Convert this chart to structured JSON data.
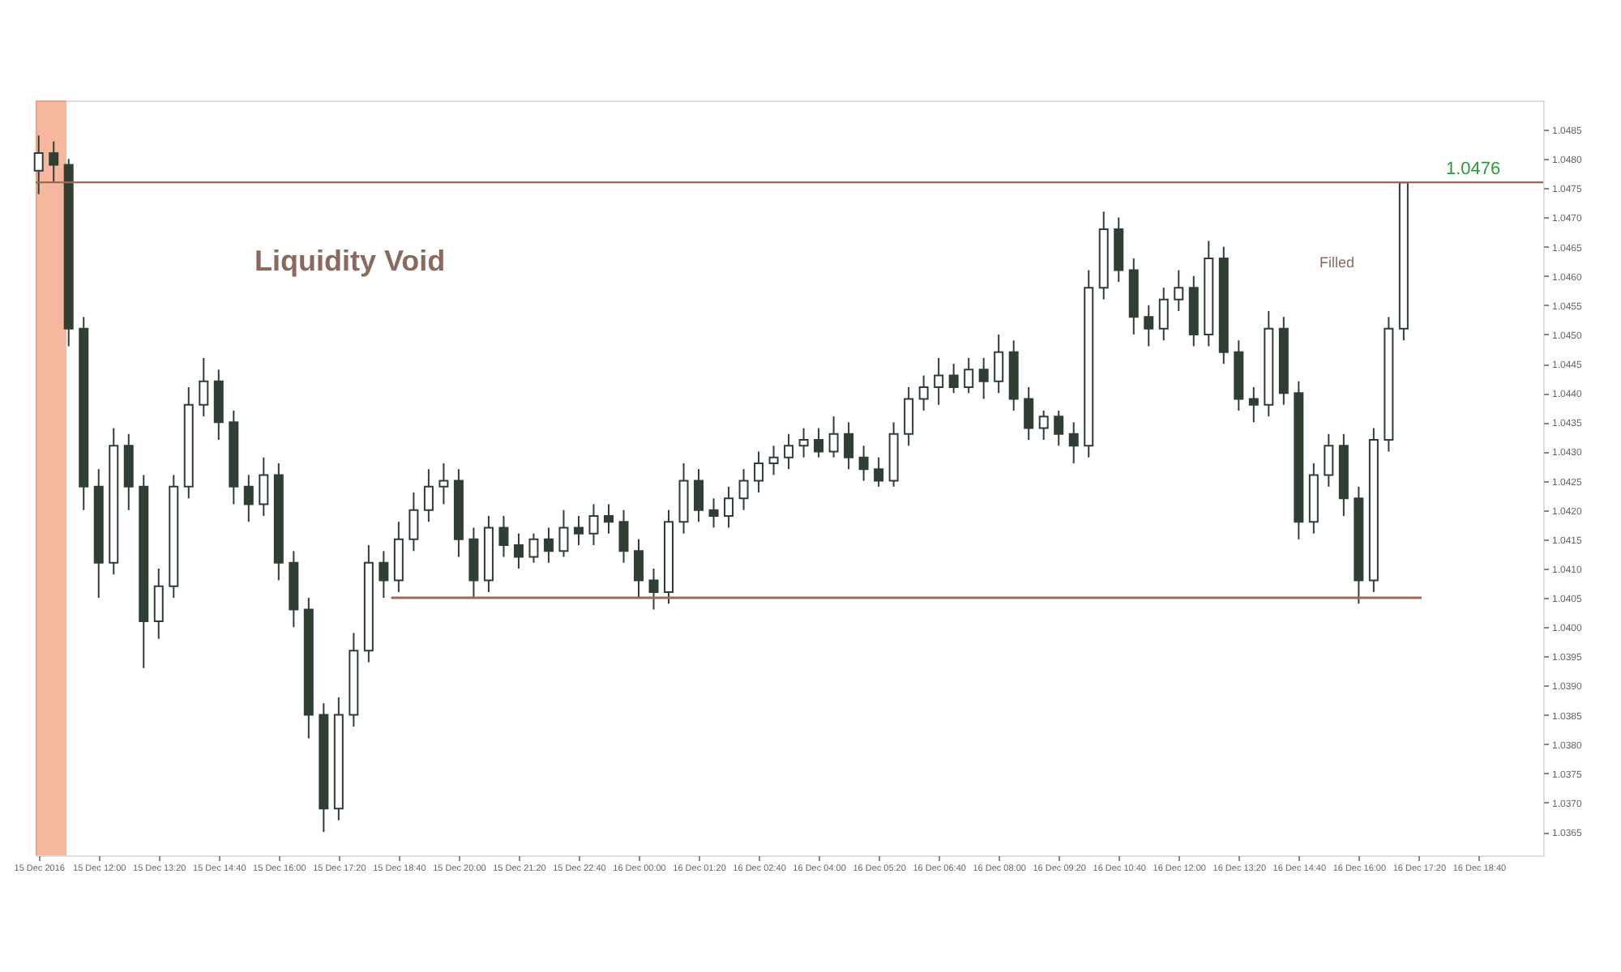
{
  "chart_data": {
    "type": "candlestick",
    "color": "#2f3f34",
    "x": [
      "2016-12-15T10:40",
      "2016-12-15T11:00",
      "2016-12-15T11:20",
      "2016-12-15T11:40",
      "2016-12-15T12:00",
      "2016-12-15T12:20",
      "2016-12-15T12:40",
      "2016-12-15T13:00",
      "2016-12-15T13:20",
      "2016-12-15T13:40",
      "2016-12-15T14:00",
      "2016-12-15T14:20",
      "2016-12-15T14:40",
      "2016-12-15T15:00",
      "2016-12-15T15:20",
      "2016-12-15T15:40",
      "2016-12-15T16:00",
      "2016-12-15T16:20",
      "2016-12-15T16:40",
      "2016-12-15T17:00",
      "2016-12-15T17:20",
      "2016-12-15T17:40",
      "2016-12-15T18:00",
      "2016-12-15T18:20",
      "2016-12-15T18:40",
      "2016-12-15T19:00",
      "2016-12-15T19:20",
      "2016-12-15T19:40",
      "2016-12-15T20:00",
      "2016-12-15T20:20",
      "2016-12-15T20:40",
      "2016-12-15T21:00",
      "2016-12-15T21:20",
      "2016-12-15T21:40",
      "2016-12-15T22:00",
      "2016-12-15T22:20",
      "2016-12-15T22:40",
      "2016-12-15T23:00",
      "2016-12-15T23:20",
      "2016-12-15T23:40",
      "2016-12-16T00:00",
      "2016-12-16T00:20",
      "2016-12-16T00:40",
      "2016-12-16T01:00",
      "2016-12-16T01:20",
      "2016-12-16T01:40",
      "2016-12-16T02:00",
      "2016-12-16T02:20",
      "2016-12-16T02:40",
      "2016-12-16T03:00",
      "2016-12-16T03:20",
      "2016-12-16T03:40",
      "2016-12-16T04:00",
      "2016-12-16T04:20",
      "2016-12-16T04:40",
      "2016-12-16T05:00",
      "2016-12-16T05:20",
      "2016-12-16T05:40",
      "2016-12-16T06:00",
      "2016-12-16T06:20",
      "2016-12-16T06:40",
      "2016-12-16T07:00",
      "2016-12-16T07:20",
      "2016-12-16T07:40",
      "2016-12-16T08:00",
      "2016-12-16T08:20",
      "2016-12-16T08:40",
      "2016-12-16T09:00",
      "2016-12-16T09:20",
      "2016-12-16T09:40",
      "2016-12-16T10:00",
      "2016-12-16T10:20",
      "2016-12-16T10:40",
      "2016-12-16T11:00",
      "2016-12-16T11:20",
      "2016-12-16T11:40",
      "2016-12-16T12:00",
      "2016-12-16T12:20",
      "2016-12-16T12:40",
      "2016-12-16T13:00",
      "2016-12-16T13:20",
      "2016-12-16T13:40",
      "2016-12-16T14:00",
      "2016-12-16T14:20",
      "2016-12-16T14:40",
      "2016-12-16T15:00",
      "2016-12-16T15:20",
      "2016-12-16T15:40",
      "2016-12-16T16:00",
      "2016-12-16T16:20",
      "2016-12-16T16:40",
      "2016-12-16T17:00"
    ],
    "ohlc": [
      [
        1.0478,
        1.0484,
        1.0474,
        1.0481
      ],
      [
        1.0481,
        1.0483,
        1.0476,
        1.0479
      ],
      [
        1.0479,
        1.048,
        1.0448,
        1.0451
      ],
      [
        1.0451,
        1.0453,
        1.042,
        1.0424
      ],
      [
        1.0424,
        1.0427,
        1.0405,
        1.0411
      ],
      [
        1.0411,
        1.0434,
        1.0409,
        1.0431
      ],
      [
        1.0431,
        1.0433,
        1.042,
        1.0424
      ],
      [
        1.0424,
        1.0426,
        1.0393,
        1.0401
      ],
      [
        1.0401,
        1.041,
        1.0398,
        1.0407
      ],
      [
        1.0407,
        1.0426,
        1.0405,
        1.0424
      ],
      [
        1.0424,
        1.0441,
        1.0422,
        1.0438
      ],
      [
        1.0438,
        1.0446,
        1.0436,
        1.0442
      ],
      [
        1.0442,
        1.0444,
        1.0432,
        1.0435
      ],
      [
        1.0435,
        1.0437,
        1.0421,
        1.0424
      ],
      [
        1.0424,
        1.0426,
        1.0418,
        1.0421
      ],
      [
        1.0421,
        1.0429,
        1.0419,
        1.0426
      ],
      [
        1.0426,
        1.0428,
        1.0408,
        1.0411
      ],
      [
        1.0411,
        1.0413,
        1.04,
        1.0403
      ],
      [
        1.0403,
        1.0405,
        1.0381,
        1.0385
      ],
      [
        1.0385,
        1.0387,
        1.0365,
        1.0369
      ],
      [
        1.0369,
        1.0388,
        1.0367,
        1.0385
      ],
      [
        1.0385,
        1.0399,
        1.0383,
        1.0396
      ],
      [
        1.0396,
        1.0414,
        1.0394,
        1.0411
      ],
      [
        1.0411,
        1.0413,
        1.0405,
        1.0408
      ],
      [
        1.0408,
        1.0418,
        1.0406,
        1.0415
      ],
      [
        1.0415,
        1.0423,
        1.0413,
        1.042
      ],
      [
        1.042,
        1.0427,
        1.0418,
        1.0424
      ],
      [
        1.0424,
        1.0428,
        1.0421,
        1.0425
      ],
      [
        1.0425,
        1.0427,
        1.0412,
        1.0415
      ],
      [
        1.0415,
        1.0417,
        1.0405,
        1.0408
      ],
      [
        1.0408,
        1.0419,
        1.0406,
        1.0417
      ],
      [
        1.0417,
        1.0419,
        1.0412,
        1.0414
      ],
      [
        1.0414,
        1.0416,
        1.041,
        1.0412
      ],
      [
        1.0412,
        1.0416,
        1.0411,
        1.0415
      ],
      [
        1.0415,
        1.0417,
        1.0411,
        1.0413
      ],
      [
        1.0413,
        1.042,
        1.0412,
        1.0417
      ],
      [
        1.0417,
        1.0419,
        1.0414,
        1.0416
      ],
      [
        1.0416,
        1.0421,
        1.0414,
        1.0419
      ],
      [
        1.0419,
        1.0421,
        1.0416,
        1.0418
      ],
      [
        1.0418,
        1.042,
        1.0411,
        1.0413
      ],
      [
        1.0413,
        1.0415,
        1.0405,
        1.0408
      ],
      [
        1.0408,
        1.041,
        1.0403,
        1.0406
      ],
      [
        1.0406,
        1.042,
        1.0404,
        1.0418
      ],
      [
        1.0418,
        1.0428,
        1.0416,
        1.0425
      ],
      [
        1.0425,
        1.0427,
        1.0418,
        1.042
      ],
      [
        1.042,
        1.0422,
        1.0417,
        1.0419
      ],
      [
        1.0419,
        1.0424,
        1.0417,
        1.0422
      ],
      [
        1.0422,
        1.0427,
        1.042,
        1.0425
      ],
      [
        1.0425,
        1.043,
        1.0423,
        1.0428
      ],
      [
        1.0428,
        1.0431,
        1.0426,
        1.0429
      ],
      [
        1.0429,
        1.0433,
        1.0427,
        1.0431
      ],
      [
        1.0431,
        1.0434,
        1.0429,
        1.0432
      ],
      [
        1.0432,
        1.0434,
        1.0429,
        1.043
      ],
      [
        1.043,
        1.0436,
        1.0429,
        1.0433
      ],
      [
        1.0433,
        1.0435,
        1.0427,
        1.0429
      ],
      [
        1.0429,
        1.0431,
        1.0425,
        1.0427
      ],
      [
        1.0427,
        1.0429,
        1.0424,
        1.0425
      ],
      [
        1.0425,
        1.0435,
        1.0424,
        1.0433
      ],
      [
        1.0433,
        1.0441,
        1.0431,
        1.0439
      ],
      [
        1.0439,
        1.0443,
        1.0437,
        1.0441
      ],
      [
        1.0441,
        1.0446,
        1.0438,
        1.0443
      ],
      [
        1.0443,
        1.0445,
        1.044,
        1.0441
      ],
      [
        1.0441,
        1.0446,
        1.044,
        1.0444
      ],
      [
        1.0444,
        1.0446,
        1.0439,
        1.0442
      ],
      [
        1.0442,
        1.045,
        1.044,
        1.0447
      ],
      [
        1.0447,
        1.0449,
        1.0437,
        1.0439
      ],
      [
        1.0439,
        1.0441,
        1.0432,
        1.0434
      ],
      [
        1.0434,
        1.0437,
        1.0432,
        1.0436
      ],
      [
        1.0436,
        1.0437,
        1.0431,
        1.0433
      ],
      [
        1.0433,
        1.0435,
        1.0428,
        1.0431
      ],
      [
        1.0431,
        1.0461,
        1.0429,
        1.0458
      ],
      [
        1.0458,
        1.0471,
        1.0456,
        1.0468
      ],
      [
        1.0468,
        1.047,
        1.0459,
        1.0461
      ],
      [
        1.0461,
        1.0463,
        1.045,
        1.0453
      ],
      [
        1.0453,
        1.0455,
        1.0448,
        1.0451
      ],
      [
        1.0451,
        1.0458,
        1.0449,
        1.0456
      ],
      [
        1.0456,
        1.0461,
        1.0454,
        1.0458
      ],
      [
        1.0458,
        1.046,
        1.0448,
        1.045
      ],
      [
        1.045,
        1.0466,
        1.0448,
        1.0463
      ],
      [
        1.0463,
        1.0465,
        1.0445,
        1.0447
      ],
      [
        1.0447,
        1.0449,
        1.0437,
        1.0439
      ],
      [
        1.0439,
        1.0441,
        1.0435,
        1.0438
      ],
      [
        1.0438,
        1.0454,
        1.0436,
        1.0451
      ],
      [
        1.0451,
        1.0453,
        1.0438,
        1.044
      ],
      [
        1.044,
        1.0442,
        1.0415,
        1.0418
      ],
      [
        1.0418,
        1.0428,
        1.0416,
        1.0426
      ],
      [
        1.0426,
        1.0433,
        1.0424,
        1.0431
      ],
      [
        1.0431,
        1.0433,
        1.0419,
        1.0422
      ],
      [
        1.0422,
        1.0424,
        1.0404,
        1.0408
      ],
      [
        1.0408,
        1.0434,
        1.0406,
        1.0432
      ],
      [
        1.0432,
        1.0453,
        1.043,
        1.0451
      ],
      [
        1.0451,
        1.0476,
        1.0449,
        1.0476
      ]
    ],
    "series": [
      {
        "type": "line",
        "color": "#9a6a58",
        "x": [
          "2016-12-15T18:30",
          "2016-12-16T17:24"
        ],
        "values": [
          1.0405,
          1.0405
        ]
      }
    ],
    "xlim": [
      "2016-12-15T10:36",
      "2016-12-16T20:06"
    ],
    "ylim": [
      1.0361,
      1.049
    ],
    "xticks": [
      {
        "value": "2016-12-15T10:40",
        "label": "15 Dec 2016"
      },
      {
        "value": "2016-12-15T12:00",
        "label": "15 Dec 12:00"
      },
      {
        "value": "2016-12-15T13:20",
        "label": "15 Dec 13:20"
      },
      {
        "value": "2016-12-15T14:40",
        "label": "15 Dec 14:40"
      },
      {
        "value": "2016-12-15T16:00",
        "label": "15 Dec 16:00"
      },
      {
        "value": "2016-12-15T17:20",
        "label": "15 Dec 17:20"
      },
      {
        "value": "2016-12-15T18:40",
        "label": "15 Dec 18:40"
      },
      {
        "value": "2016-12-15T20:00",
        "label": "15 Dec 20:00"
      },
      {
        "value": "2016-12-15T21:20",
        "label": "15 Dec 21:20"
      },
      {
        "value": "2016-12-15T22:40",
        "label": "15 Dec 22:40"
      },
      {
        "value": "2016-12-16T00:00",
        "label": "16 Dec 00:00"
      },
      {
        "value": "2016-12-16T01:20",
        "label": "16 Dec 01:20"
      },
      {
        "value": "2016-12-16T02:40",
        "label": "16 Dec 02:40"
      },
      {
        "value": "2016-12-16T04:00",
        "label": "16 Dec 04:00"
      },
      {
        "value": "2016-12-16T05:20",
        "label": "16 Dec 05:20"
      },
      {
        "value": "2016-12-16T06:40",
        "label": "16 Dec 06:40"
      },
      {
        "value": "2016-12-16T08:00",
        "label": "16 Dec 08:00"
      },
      {
        "value": "2016-12-16T09:20",
        "label": "16 Dec 09:20"
      },
      {
        "value": "2016-12-16T10:40",
        "label": "16 Dec 10:40"
      },
      {
        "value": "2016-12-16T12:00",
        "label": "16 Dec 12:00"
      },
      {
        "value": "2016-12-16T13:20",
        "label": "16 Dec 13:20"
      },
      {
        "value": "2016-12-16T14:40",
        "label": "16 Dec 14:40"
      },
      {
        "value": "2016-12-16T16:00",
        "label": "16 Dec 16:00"
      },
      {
        "value": "2016-12-16T17:20",
        "label": "16 Dec 17:20"
      },
      {
        "value": "2016-12-16T18:40",
        "label": "16 Dec 18:40"
      }
    ],
    "yticks": [
      {
        "value": 1.0365,
        "label": "1.0365"
      },
      {
        "value": 1.037,
        "label": "1.0370"
      },
      {
        "value": 1.0375,
        "label": "1.0375"
      },
      {
        "value": 1.038,
        "label": "1.0380"
      },
      {
        "value": 1.0385,
        "label": "1.0385"
      },
      {
        "value": 1.039,
        "label": "1.0390"
      },
      {
        "value": 1.0395,
        "label": "1.0395"
      },
      {
        "value": 1.04,
        "label": "1.0400"
      },
      {
        "value": 1.0405,
        "label": "1.0405"
      },
      {
        "value": 1.041,
        "label": "1.0410"
      },
      {
        "value": 1.0415,
        "label": "1.0415"
      },
      {
        "value": 1.042,
        "label": "1.0420"
      },
      {
        "value": 1.0425,
        "label": "1.0425"
      },
      {
        "value": 1.043,
        "label": "1.0430"
      },
      {
        "value": 1.0435,
        "label": "1.0435"
      },
      {
        "value": 1.044,
        "label": "1.0440"
      },
      {
        "value": 1.0445,
        "label": "1.0445"
      },
      {
        "value": 1.045,
        "label": "1.0450"
      },
      {
        "value": 1.0455,
        "label": "1.0455"
      },
      {
        "value": 1.046,
        "label": "1.0460"
      },
      {
        "value": 1.0465,
        "label": "1.0465"
      },
      {
        "value": 1.047,
        "label": "1.0470"
      },
      {
        "value": 1.0475,
        "label": "1.0475"
      },
      {
        "value": 1.048,
        "label": "1.0480"
      },
      {
        "value": 1.0485,
        "label": "1.0485"
      }
    ],
    "ref_lines": [
      {
        "axis": "y",
        "value": 1.0476,
        "label": "1.0476",
        "color": "#9a6a58"
      }
    ],
    "bands": [
      {
        "axis": "x",
        "from": "2016-12-15T10:36",
        "to": "2016-12-15T11:17",
        "color": "#f07040"
      }
    ],
    "annotations": [
      "Liquidity Void",
      "Filled"
    ],
    "grid": false
  }
}
